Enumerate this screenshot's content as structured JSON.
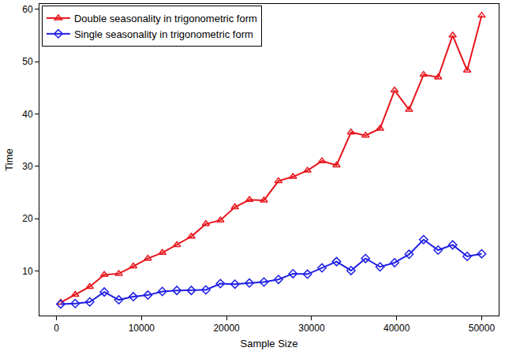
{
  "chart_data": {
    "type": "line",
    "x_label": "Sample Size",
    "y_label": "Time",
    "x": [
      500,
      2207,
      3914,
      5621,
      7328,
      9034,
      10741,
      12448,
      14155,
      15862,
      17569,
      19276,
      20983,
      22690,
      24397,
      26103,
      27810,
      29517,
      31224,
      32931,
      34638,
      36345,
      38052,
      39759,
      41466,
      43172,
      44879,
      46586,
      48293,
      50000
    ],
    "series": [
      {
        "name": "Double seasonality in trigonometric form",
        "color": "#e8141c",
        "marker": "triangle-up",
        "values": [
          4.0,
          5.5,
          7.0,
          9.3,
          9.5,
          10.9,
          12.4,
          13.5,
          15.0,
          16.6,
          19.0,
          19.7,
          22.2,
          23.6,
          23.5,
          27.2,
          28.0,
          29.2,
          31.0,
          30.2,
          36.5,
          35.9,
          37.2,
          44.5,
          40.8,
          47.5,
          47.0,
          55.0,
          48.3,
          58.8
        ]
      },
      {
        "name": "Single seasonality in trigonometric form",
        "color": "#1f1fe6",
        "marker": "diamond",
        "values": [
          3.7,
          3.8,
          4.1,
          6.0,
          4.5,
          5.1,
          5.4,
          6.1,
          6.3,
          6.3,
          6.4,
          7.6,
          7.5,
          7.7,
          7.9,
          8.4,
          9.5,
          9.4,
          10.6,
          11.8,
          10.1,
          12.4,
          10.8,
          11.6,
          13.2,
          16.0,
          14.0,
          15.0,
          12.8,
          13.3
        ]
      }
    ],
    "xlim": [
      -2000,
      52000
    ],
    "xticks": [
      0,
      10000,
      20000,
      30000,
      40000,
      50000
    ],
    "ylim": [
      1.5,
      61
    ],
    "yticks": [
      10,
      20,
      30,
      40,
      50,
      60
    ],
    "grid": false,
    "legend": "upper left"
  }
}
